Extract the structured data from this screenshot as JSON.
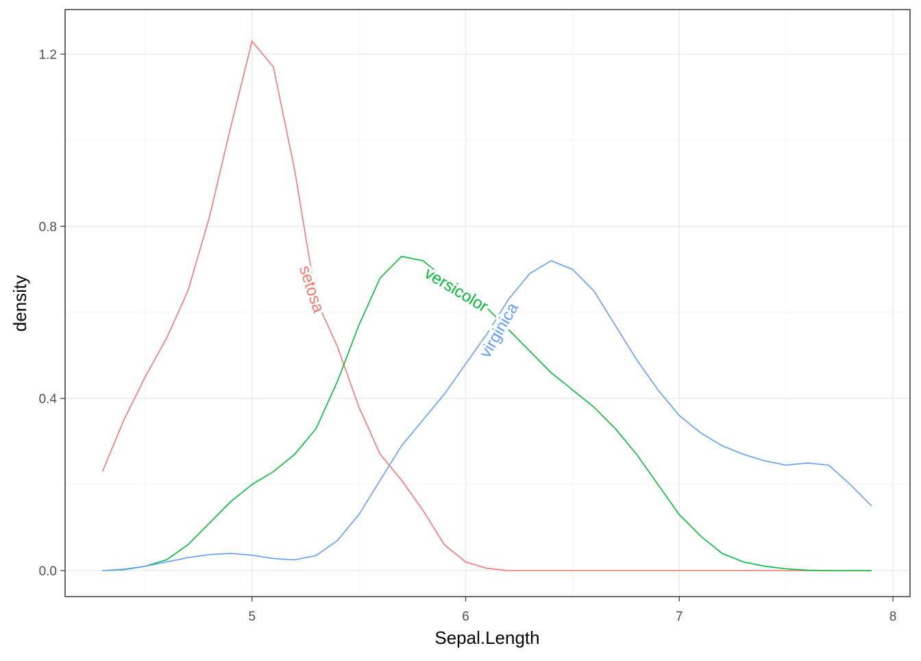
{
  "chart_data": {
    "type": "line",
    "x_label": "Sepal.Length",
    "y_label": "density",
    "x": [
      4.3,
      4.4,
      4.5,
      4.6,
      4.7,
      4.8,
      4.9,
      5.0,
      5.1,
      5.2,
      5.3,
      5.4,
      5.5,
      5.6,
      5.7,
      5.8,
      5.9,
      6.0,
      6.1,
      6.2,
      6.3,
      6.4,
      6.5,
      6.6,
      6.7,
      6.8,
      6.9,
      7.0,
      7.1,
      7.2,
      7.3,
      7.4,
      7.5,
      7.6,
      7.7,
      7.8,
      7.9
    ],
    "series": [
      {
        "name": "setosa",
        "color": "#F8766D",
        "values": [
          0.23,
          0.35,
          0.45,
          0.54,
          0.65,
          0.82,
          1.03,
          1.23,
          1.17,
          0.93,
          0.63,
          0.52,
          0.38,
          0.27,
          0.21,
          0.14,
          0.06,
          0.02,
          0.005,
          0,
          0,
          0,
          0,
          0,
          0,
          0,
          0,
          0,
          0,
          0,
          0,
          0,
          0,
          0,
          0,
          0,
          0
        ]
      },
      {
        "name": "versicolor",
        "color": "#00BA38",
        "values": [
          0,
          0.002,
          0.01,
          0.025,
          0.06,
          0.11,
          0.16,
          0.2,
          0.23,
          0.27,
          0.33,
          0.44,
          0.57,
          0.68,
          0.73,
          0.72,
          0.68,
          0.64,
          0.61,
          0.56,
          0.51,
          0.46,
          0.42,
          0.38,
          0.33,
          0.27,
          0.2,
          0.13,
          0.08,
          0.04,
          0.02,
          0.01,
          0.004,
          0.001,
          0,
          0,
          0
        ]
      },
      {
        "name": "virginica",
        "color": "#619CFF",
        "values": [
          0,
          0.003,
          0.01,
          0.02,
          0.03,
          0.037,
          0.04,
          0.036,
          0.028,
          0.025,
          0.035,
          0.07,
          0.13,
          0.21,
          0.29,
          0.35,
          0.41,
          0.48,
          0.55,
          0.63,
          0.69,
          0.72,
          0.7,
          0.65,
          0.57,
          0.49,
          0.42,
          0.36,
          0.32,
          0.29,
          0.27,
          0.255,
          0.245,
          0.25,
          0.245,
          0.2,
          0.15
        ]
      }
    ],
    "xlim": [
      4.125,
      8.08
    ],
    "ylim": [
      -0.0605,
      1.3035
    ],
    "xticks": [
      5,
      6,
      7,
      8
    ],
    "yticks": [
      {
        "value": 0,
        "label": "0.0"
      },
      0.4,
      0.8,
      1.2
    ],
    "xminor": [
      4.5,
      5.5,
      6.5,
      7.5
    ],
    "yminor": [
      0.2,
      0.6,
      1.0
    ],
    "grid": true
  }
}
